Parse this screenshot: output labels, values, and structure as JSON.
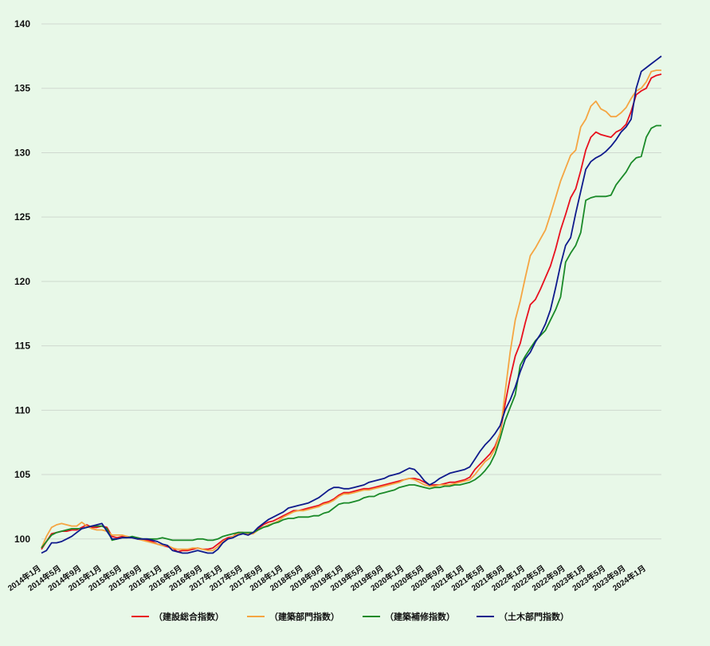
{
  "chart_data": {
    "type": "line",
    "title": "",
    "xlabel": "",
    "ylabel": "",
    "ylim": [
      98.5,
      140
    ],
    "yticks": [
      100,
      105,
      110,
      115,
      120,
      125,
      130,
      135,
      140
    ],
    "grid": true,
    "legend_position": "bottom",
    "x_tick_labels": [
      "2014年1月",
      "2014年5月",
      "2014年9月",
      "2015年1月",
      "2015年5月",
      "2015年9月",
      "2016年1月",
      "2016年5月",
      "2016年9月",
      "2017年1月",
      "2017年5月",
      "2017年9月",
      "2018年1月",
      "2018年5月",
      "2018年9月",
      "2019年1月",
      "2019年5月",
      "2019年9月",
      "2020年1月",
      "2020年5月",
      "2020年9月",
      "2021年1月",
      "2021年5月",
      "2021年9月",
      "2022年1月",
      "2022年5月",
      "2022年9月",
      "2023年1月",
      "2023年5月",
      "2023年9月",
      "2024年1月"
    ],
    "series": [
      {
        "name": "（建設総合指数）",
        "color": "#e8101e",
        "values": [
          99.2,
          99.8,
          100.4,
          100.5,
          100.6,
          100.6,
          100.7,
          100.7,
          100.9,
          101.1,
          100.9,
          100.9,
          101.0,
          100.9,
          100.2,
          100.1,
          100.2,
          100.2,
          100.1,
          100.1,
          100.0,
          99.9,
          99.8,
          99.6,
          99.5,
          99.4,
          99.3,
          99.0,
          99.1,
          99.1,
          99.2,
          99.3,
          99.2,
          99.2,
          99.3,
          99.6,
          99.9,
          100.1,
          100.2,
          100.5,
          100.5,
          100.3,
          100.5,
          100.8,
          101.1,
          101.3,
          101.4,
          101.6,
          101.8,
          102.0,
          102.2,
          102.2,
          102.3,
          102.4,
          102.5,
          102.6,
          102.8,
          102.9,
          103.1,
          103.4,
          103.6,
          103.6,
          103.7,
          103.8,
          103.9,
          103.9,
          104.0,
          104.1,
          104.2,
          104.3,
          104.4,
          104.5,
          104.6,
          104.7,
          104.7,
          104.6,
          104.4,
          104.2,
          104.2,
          104.2,
          104.3,
          104.4,
          104.4,
          104.5,
          104.6,
          104.8,
          105.4,
          105.8,
          106.2,
          106.6,
          107.2,
          108.2,
          110.5,
          112.5,
          114.2,
          115.2,
          116.8,
          118.2,
          118.6,
          119.4,
          120.3,
          121.2,
          122.5,
          124.0,
          125.2,
          126.5,
          127.2,
          128.6,
          130.2,
          131.2,
          131.6,
          131.4,
          131.3,
          131.2,
          131.6,
          131.8,
          132.2,
          133.2,
          134.5,
          134.8,
          135.0,
          135.8,
          136.0,
          136.1
        ]
      },
      {
        "name": "（建築部門指数）",
        "color": "#f5a542",
        "values": [
          99.3,
          100.2,
          100.9,
          101.1,
          101.2,
          101.1,
          101.0,
          101.0,
          101.3,
          101.0,
          100.8,
          100.7,
          100.7,
          100.6,
          100.3,
          100.3,
          100.3,
          100.2,
          100.1,
          100.0,
          99.9,
          99.8,
          99.7,
          99.6,
          99.5,
          99.5,
          99.3,
          99.2,
          99.2,
          99.2,
          99.3,
          99.3,
          99.2,
          99.1,
          99.1,
          99.4,
          99.8,
          100.0,
          100.2,
          100.4,
          100.5,
          100.4,
          100.4,
          100.7,
          100.9,
          101.1,
          101.2,
          101.4,
          101.7,
          101.9,
          102.1,
          102.2,
          102.2,
          102.3,
          102.4,
          102.5,
          102.7,
          102.8,
          103.0,
          103.3,
          103.5,
          103.5,
          103.6,
          103.7,
          103.8,
          103.8,
          103.9,
          104.0,
          104.1,
          104.2,
          104.3,
          104.4,
          104.6,
          104.7,
          104.6,
          104.4,
          104.2,
          104.1,
          104.1,
          104.2,
          104.2,
          104.2,
          104.3,
          104.4,
          104.5,
          104.6,
          105.0,
          105.5,
          106.0,
          106.3,
          107.0,
          108.2,
          111.4,
          114.5,
          117.0,
          118.5,
          120.3,
          122.0,
          122.6,
          123.3,
          124.0,
          125.2,
          126.5,
          127.8,
          128.8,
          129.8,
          130.2,
          132.0,
          132.6,
          133.6,
          134.0,
          133.4,
          133.2,
          132.8,
          132.8,
          133.1,
          133.5,
          134.2,
          134.8,
          135.0,
          135.5,
          136.3,
          136.4,
          136.4
        ]
      },
      {
        "name": "（建築補修指数）",
        "color": "#1a8a28",
        "values": [
          99.3,
          99.8,
          100.3,
          100.5,
          100.6,
          100.7,
          100.8,
          100.8,
          100.8,
          100.9,
          101.0,
          101.0,
          101.0,
          100.8,
          99.9,
          100.0,
          100.1,
          100.1,
          100.2,
          100.1,
          100.0,
          100.0,
          100.0,
          100.0,
          100.1,
          100.0,
          99.9,
          99.9,
          99.9,
          99.9,
          99.9,
          100.0,
          100.0,
          99.9,
          99.9,
          100.0,
          100.2,
          100.3,
          100.4,
          100.5,
          100.5,
          100.5,
          100.5,
          100.7,
          100.9,
          101.0,
          101.2,
          101.3,
          101.5,
          101.6,
          101.6,
          101.7,
          101.7,
          101.7,
          101.8,
          101.8,
          102.0,
          102.1,
          102.4,
          102.7,
          102.8,
          102.8,
          102.9,
          103.0,
          103.2,
          103.3,
          103.3,
          103.5,
          103.6,
          103.7,
          103.8,
          104.0,
          104.1,
          104.2,
          104.2,
          104.1,
          104.0,
          103.9,
          104.0,
          104.0,
          104.1,
          104.1,
          104.2,
          104.2,
          104.3,
          104.4,
          104.6,
          104.9,
          105.3,
          105.8,
          106.6,
          107.8,
          109.2,
          110.2,
          111.2,
          113.5,
          114.2,
          114.8,
          115.4,
          115.8,
          116.2,
          117.0,
          117.8,
          118.8,
          121.5,
          122.2,
          122.8,
          123.8,
          126.3,
          126.5,
          126.6,
          126.6,
          126.6,
          126.7,
          127.5,
          128.0,
          128.5,
          129.2,
          129.6,
          129.7,
          131.2,
          131.9,
          132.1,
          132.1
        ]
      },
      {
        "name": "（土木部門指数）",
        "color": "#0f1a8c",
        "values": [
          98.9,
          99.1,
          99.7,
          99.7,
          99.8,
          100.0,
          100.2,
          100.5,
          100.8,
          100.9,
          101.0,
          101.1,
          101.2,
          100.6,
          100.0,
          100.0,
          100.1,
          100.1,
          100.1,
          100.0,
          100.0,
          100.0,
          99.9,
          99.8,
          99.6,
          99.5,
          99.1,
          99.0,
          98.9,
          98.9,
          99.0,
          99.1,
          99.0,
          98.9,
          98.9,
          99.2,
          99.7,
          100.0,
          100.1,
          100.3,
          100.4,
          100.3,
          100.5,
          100.9,
          101.2,
          101.5,
          101.7,
          101.9,
          102.1,
          102.4,
          102.5,
          102.6,
          102.7,
          102.8,
          103.0,
          103.2,
          103.5,
          103.8,
          104.0,
          104.0,
          103.9,
          103.9,
          104.0,
          104.1,
          104.2,
          104.4,
          104.5,
          104.6,
          104.7,
          104.9,
          105.0,
          105.1,
          105.3,
          105.5,
          105.4,
          105.0,
          104.5,
          104.2,
          104.4,
          104.7,
          104.9,
          105.1,
          105.2,
          105.3,
          105.4,
          105.6,
          106.2,
          106.8,
          107.3,
          107.7,
          108.2,
          108.8,
          110.0,
          110.8,
          111.8,
          113.0,
          114.0,
          114.5,
          115.3,
          115.9,
          116.7,
          117.8,
          119.5,
          121.3,
          122.8,
          123.4,
          125.3,
          127.0,
          128.7,
          129.3,
          129.6,
          129.8,
          130.1,
          130.5,
          131.0,
          131.6,
          132.0,
          132.6,
          135.0,
          136.3,
          136.6,
          136.9,
          137.2,
          137.5
        ]
      }
    ]
  }
}
